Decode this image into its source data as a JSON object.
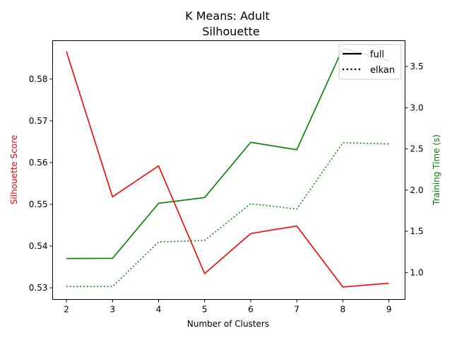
{
  "chart_data": {
    "type": "line",
    "title": "K Means: Adult",
    "subtitle": "Silhouette",
    "xlabel": "Number of Clusters",
    "ylabel_left": "Silhouette Score",
    "ylabel_right": "Training Time (s)",
    "x": [
      2,
      3,
      4,
      5,
      6,
      7,
      8,
      9
    ],
    "xlim": [
      1.7,
      9.35
    ],
    "ylim_left": [
      0.5272,
      0.5892
    ],
    "ylim_right": [
      0.673,
      3.813
    ],
    "yticks_left": [
      0.53,
      0.54,
      0.55,
      0.56,
      0.57,
      0.58
    ],
    "yticks_right": [
      1.0,
      1.5,
      2.0,
      2.5,
      3.0,
      3.5
    ],
    "ytick_labels_left": [
      "0.53",
      "0.54",
      "0.55",
      "0.56",
      "0.57",
      "0.58"
    ],
    "ytick_labels_right": [
      "1.0",
      "1.5",
      "2.0",
      "2.5",
      "3.0",
      "3.5"
    ],
    "series": [
      {
        "name": "full",
        "axis": "left",
        "style": "solid",
        "color": "#ff0000",
        "values": [
          0.5866,
          0.5518,
          0.5592,
          0.5334,
          0.543,
          0.5448,
          0.5302,
          0.5311
        ]
      },
      {
        "name": "full",
        "axis": "right",
        "style": "solid",
        "color": "#008000",
        "values": [
          1.17,
          1.172,
          1.84,
          1.91,
          2.58,
          2.49,
          3.72,
          3.57
        ]
      },
      {
        "name": "elkan",
        "axis": "right",
        "style": "dotted",
        "color": "#008000",
        "values": [
          0.83,
          0.83,
          1.37,
          1.39,
          1.835,
          1.77,
          2.575,
          2.56
        ]
      }
    ],
    "legend": {
      "position": "top-right",
      "entries": [
        {
          "label": "full",
          "style": "solid",
          "color": "#000000"
        },
        {
          "label": "elkan",
          "style": "dotted",
          "color": "#000000"
        }
      ]
    }
  }
}
